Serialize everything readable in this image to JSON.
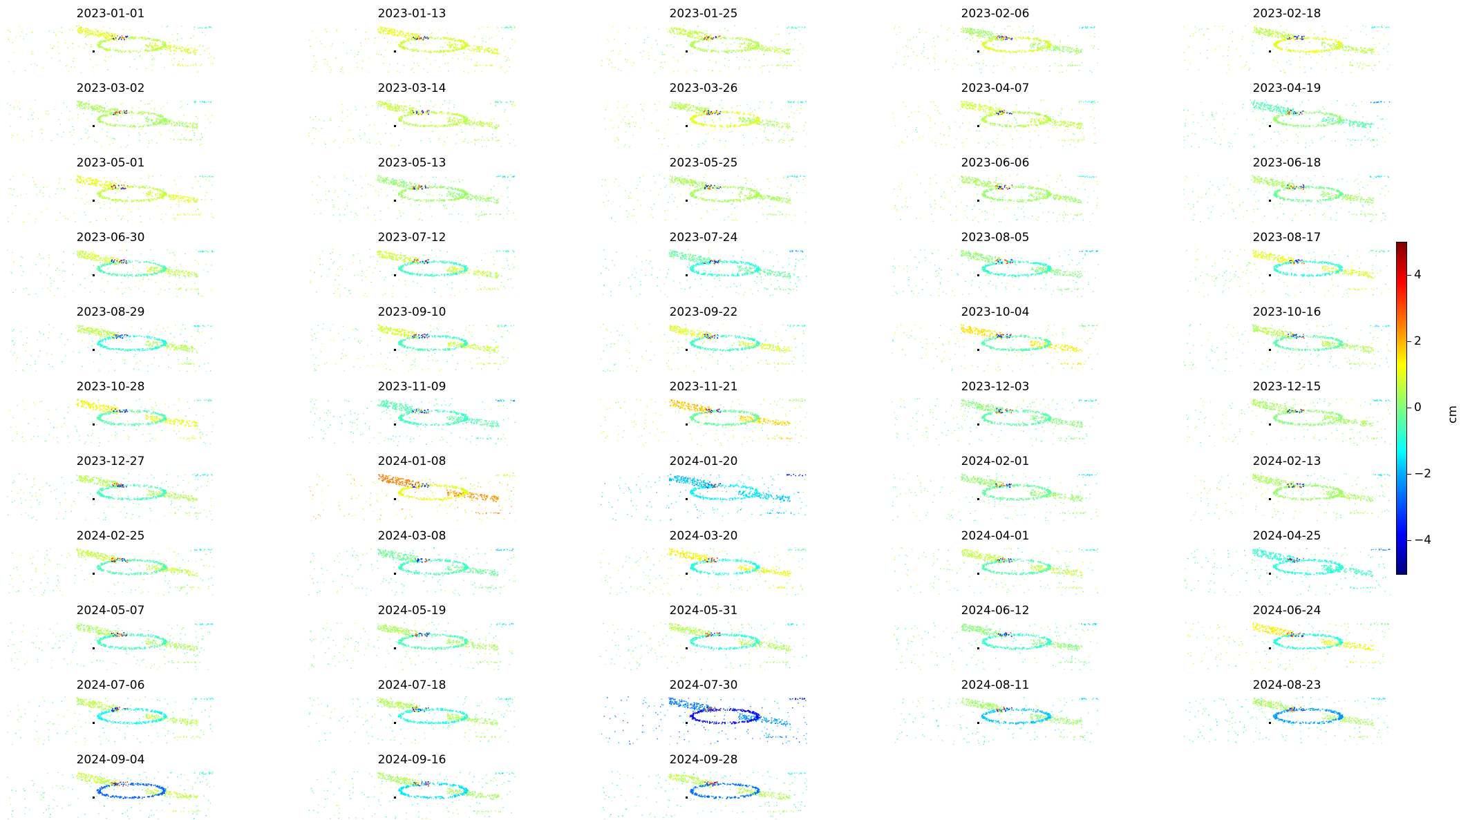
{
  "chart_data": {
    "type": "heatmap",
    "title": "",
    "colormap": "jet",
    "colorbar": {
      "label": "cm",
      "range": [
        -5,
        5
      ],
      "ticks": [
        4,
        2,
        0,
        -2,
        -4
      ],
      "tick_labels": [
        "4",
        "2",
        "0",
        "−2",
        "−4"
      ]
    },
    "grid": false,
    "panels": [
      {
        "date": "2023-01-01",
        "ring_cm": 0.6,
        "branch_cm": 1.0
      },
      {
        "date": "2023-01-13",
        "ring_cm": 0.8,
        "branch_cm": 1.0
      },
      {
        "date": "2023-01-25",
        "ring_cm": 0.5,
        "branch_cm": 0.7
      },
      {
        "date": "2023-02-06",
        "ring_cm": 0.9,
        "branch_cm": 0.3
      },
      {
        "date": "2023-02-18",
        "ring_cm": 1.0,
        "branch_cm": 0.6
      },
      {
        "date": "2023-03-02",
        "ring_cm": 0.4,
        "branch_cm": 0.4
      },
      {
        "date": "2023-03-14",
        "ring_cm": 0.6,
        "branch_cm": 0.7
      },
      {
        "date": "2023-03-26",
        "ring_cm": 1.0,
        "branch_cm": 0.5
      },
      {
        "date": "2023-04-07",
        "ring_cm": 0.5,
        "branch_cm": 0.8
      },
      {
        "date": "2023-04-19",
        "ring_cm": 0.2,
        "branch_cm": -0.5
      },
      {
        "date": "2023-05-01",
        "ring_cm": 0.7,
        "branch_cm": 1.0
      },
      {
        "date": "2023-05-13",
        "ring_cm": 0.3,
        "branch_cm": 0.2
      },
      {
        "date": "2023-05-25",
        "ring_cm": 0.4,
        "branch_cm": 0.4
      },
      {
        "date": "2023-06-06",
        "ring_cm": 0.3,
        "branch_cm": 0.4
      },
      {
        "date": "2023-06-18",
        "ring_cm": -0.2,
        "branch_cm": 0.4
      },
      {
        "date": "2023-06-30",
        "ring_cm": -0.5,
        "branch_cm": 0.8
      },
      {
        "date": "2023-07-12",
        "ring_cm": -0.7,
        "branch_cm": 0.8
      },
      {
        "date": "2023-07-24",
        "ring_cm": -0.9,
        "branch_cm": -0.3
      },
      {
        "date": "2023-08-05",
        "ring_cm": -0.8,
        "branch_cm": 0.1
      },
      {
        "date": "2023-08-17",
        "ring_cm": -0.8,
        "branch_cm": 1.0
      },
      {
        "date": "2023-08-29",
        "ring_cm": -0.9,
        "branch_cm": 0.6
      },
      {
        "date": "2023-09-10",
        "ring_cm": -0.6,
        "branch_cm": 0.9
      },
      {
        "date": "2023-09-22",
        "ring_cm": -0.7,
        "branch_cm": 0.9
      },
      {
        "date": "2023-10-04",
        "ring_cm": -0.5,
        "branch_cm": 1.5
      },
      {
        "date": "2023-10-16",
        "ring_cm": -0.4,
        "branch_cm": 0.5
      },
      {
        "date": "2023-10-28",
        "ring_cm": -0.5,
        "branch_cm": 1.2
      },
      {
        "date": "2023-11-09",
        "ring_cm": -0.6,
        "branch_cm": -0.5
      },
      {
        "date": "2023-11-21",
        "ring_cm": -0.3,
        "branch_cm": 1.8
      },
      {
        "date": "2023-12-03",
        "ring_cm": -0.4,
        "branch_cm": 0.1
      },
      {
        "date": "2023-12-15",
        "ring_cm": 0.1,
        "branch_cm": 0.4
      },
      {
        "date": "2023-12-27",
        "ring_cm": -0.6,
        "branch_cm": 0.5
      },
      {
        "date": "2024-01-08",
        "ring_cm": 1.0,
        "branch_cm": 2.5
      },
      {
        "date": "2024-01-20",
        "ring_cm": -1.3,
        "branch_cm": -1.8
      },
      {
        "date": "2024-02-01",
        "ring_cm": -0.3,
        "branch_cm": 0.2
      },
      {
        "date": "2024-02-13",
        "ring_cm": 0.3,
        "branch_cm": 0.4
      },
      {
        "date": "2024-02-25",
        "ring_cm": -0.5,
        "branch_cm": 0.7
      },
      {
        "date": "2024-03-08",
        "ring_cm": -0.6,
        "branch_cm": -0.2
      },
      {
        "date": "2024-03-20",
        "ring_cm": -0.9,
        "branch_cm": 1.3
      },
      {
        "date": "2024-04-01",
        "ring_cm": -0.5,
        "branch_cm": 0.7
      },
      {
        "date": "2024-04-25",
        "ring_cm": -0.9,
        "branch_cm": -0.8
      },
      {
        "date": "2024-05-07",
        "ring_cm": -0.6,
        "branch_cm": 0.4
      },
      {
        "date": "2024-05-19",
        "ring_cm": -0.5,
        "branch_cm": 0.4
      },
      {
        "date": "2024-05-31",
        "ring_cm": -0.8,
        "branch_cm": 0.5
      },
      {
        "date": "2024-06-12",
        "ring_cm": -0.8,
        "branch_cm": 0.1
      },
      {
        "date": "2024-06-24",
        "ring_cm": -0.9,
        "branch_cm": 1.3
      },
      {
        "date": "2024-07-06",
        "ring_cm": -1.2,
        "branch_cm": 0.6
      },
      {
        "date": "2024-07-18",
        "ring_cm": -1.0,
        "branch_cm": 0.5
      },
      {
        "date": "2024-07-30",
        "ring_cm": -3.8,
        "branch_cm": -2.5
      },
      {
        "date": "2024-08-11",
        "ring_cm": -1.8,
        "branch_cm": 0.3
      },
      {
        "date": "2024-08-23",
        "ring_cm": -2.2,
        "branch_cm": 0.4
      },
      {
        "date": "2024-09-04",
        "ring_cm": -2.8,
        "branch_cm": 0.7
      },
      {
        "date": "2024-09-16",
        "ring_cm": -1.5,
        "branch_cm": 0.4
      },
      {
        "date": "2024-09-28",
        "ring_cm": -2.6,
        "branch_cm": 0.6
      }
    ]
  }
}
